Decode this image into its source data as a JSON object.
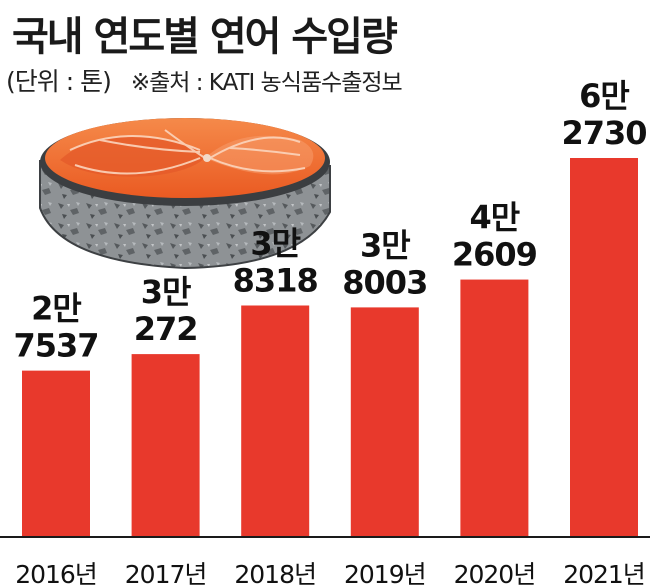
{
  "title": "국내 연도별 연어 수입량",
  "unit_note": "(단위 : 톤)",
  "source": "※출처 : KATI 농식품수출정보",
  "colors": {
    "bar": "#e8392c",
    "axis": "#1a1a1a",
    "text": "#111111"
  },
  "chart_data": {
    "type": "bar",
    "title": "국내 연도별 연어 수입량",
    "xlabel": "",
    "ylabel": "",
    "unit": "톤",
    "categories": [
      "2016년",
      "2017년",
      "2018년",
      "2019년",
      "2020년",
      "2021년"
    ],
    "values": [
      27537,
      30272,
      38318,
      38003,
      42609,
      62730
    ],
    "value_labels": [
      [
        "2만",
        "7537"
      ],
      [
        "3만",
        "272"
      ],
      [
        "3만",
        "8318"
      ],
      [
        "3만",
        "8003"
      ],
      [
        "4만",
        "2609"
      ],
      [
        "6만",
        "2730"
      ]
    ],
    "ylim": [
      0,
      62730
    ],
    "grid": false,
    "legend": "none"
  }
}
